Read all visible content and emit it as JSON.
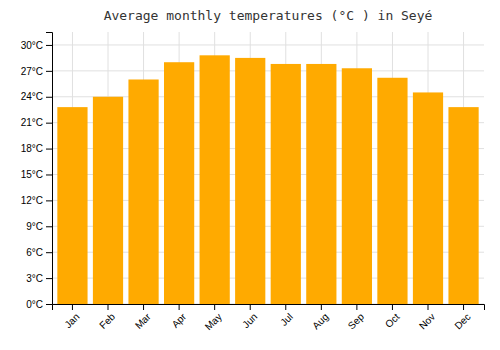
{
  "chart_data": {
    "type": "bar",
    "title": "Average monthly temperatures (°C ) in Seyé",
    "categories": [
      "Jan",
      "Feb",
      "Mar",
      "Apr",
      "May",
      "Jun",
      "Jul",
      "Aug",
      "Sep",
      "Oct",
      "Nov",
      "Dec"
    ],
    "values": [
      22.8,
      24.0,
      26.0,
      28.0,
      28.8,
      28.5,
      27.8,
      27.8,
      27.3,
      26.2,
      24.5,
      22.8
    ],
    "color": "#FFAA00",
    "ylim": [
      0,
      31.5
    ],
    "yticks": [
      {
        "value": 0,
        "label": "0°C"
      },
      {
        "value": 3,
        "label": "3°C"
      },
      {
        "value": 6,
        "label": "6°C"
      },
      {
        "value": 9,
        "label": "9°C"
      },
      {
        "value": 12,
        "label": "12°C"
      },
      {
        "value": 15,
        "label": "15°C"
      },
      {
        "value": 18,
        "label": "18°C"
      },
      {
        "value": 21,
        "label": "21°C"
      },
      {
        "value": 24,
        "label": "24°C"
      },
      {
        "value": 27,
        "label": "27°C"
      },
      {
        "value": 30,
        "label": "30°C"
      }
    ],
    "grid": true
  }
}
